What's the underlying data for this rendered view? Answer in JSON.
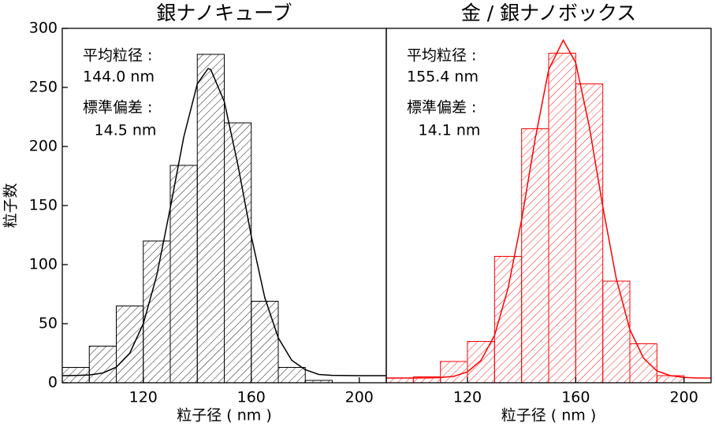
{
  "chart_data": [
    {
      "type": "histogram",
      "title": "銀ナノキューブ",
      "xlabel": "粒子径 ( nm )",
      "ylabel": "粒子数",
      "color": "#000000",
      "bins": [
        90,
        100,
        110,
        120,
        130,
        140,
        150,
        160,
        170,
        180,
        190
      ],
      "values": [
        13,
        31,
        65,
        120,
        184,
        278,
        220,
        69,
        13,
        2
      ],
      "fit": {
        "x": [
          90,
          95,
          100,
          105,
          110,
          115,
          120,
          125,
          130,
          135,
          140,
          144,
          145,
          150,
          155,
          160,
          165,
          170,
          175,
          180,
          185,
          190,
          200,
          210
        ],
        "values": [
          6,
          6.2,
          6.6,
          8.3,
          13.2,
          25,
          50,
          91,
          148,
          208,
          253,
          266,
          265,
          238,
          185,
          124,
          72,
          38,
          19,
          11,
          7,
          6.3,
          6,
          6
        ]
      },
      "xlim": [
        90,
        210
      ],
      "ylim": [
        0,
        300
      ],
      "xticks": [
        120,
        160,
        200
      ],
      "yticks": [
        0,
        50,
        100,
        150,
        200,
        250,
        300
      ],
      "annotations": [
        "平均粒径 :",
        "144.0 nm",
        "標準偏差 :",
        "14.5 nm"
      ]
    },
    {
      "type": "histogram",
      "title": "金 / 銀ナノボックス",
      "xlabel": "粒子径 ( nm )",
      "color": "#ff0000",
      "bins": [
        90,
        100,
        110,
        120,
        130,
        140,
        150,
        160,
        170,
        180,
        190,
        200
      ],
      "values": [
        4,
        5,
        18,
        35,
        107,
        215,
        279,
        253,
        86,
        33,
        6
      ],
      "fit": {
        "x": [
          90,
          95,
          100,
          105,
          110,
          115,
          120,
          125,
          130,
          135,
          140,
          145,
          150,
          155.4,
          160,
          165,
          170,
          175,
          180,
          185,
          190,
          195,
          200,
          205,
          210
        ],
        "values": [
          4,
          4,
          4,
          4.1,
          4.4,
          5.5,
          9.2,
          18.9,
          40,
          80,
          138,
          206,
          265,
          290,
          271,
          217,
          149,
          88,
          45,
          21,
          10,
          6,
          4.5,
          4,
          4
        ]
      },
      "xlim": [
        90,
        210
      ],
      "ylim": [
        0,
        300
      ],
      "xticks": [
        120,
        160,
        200
      ],
      "annotations": [
        "平均粒径 :",
        "155.4 nm",
        "標準偏差 :",
        "14.1 nm"
      ]
    }
  ]
}
